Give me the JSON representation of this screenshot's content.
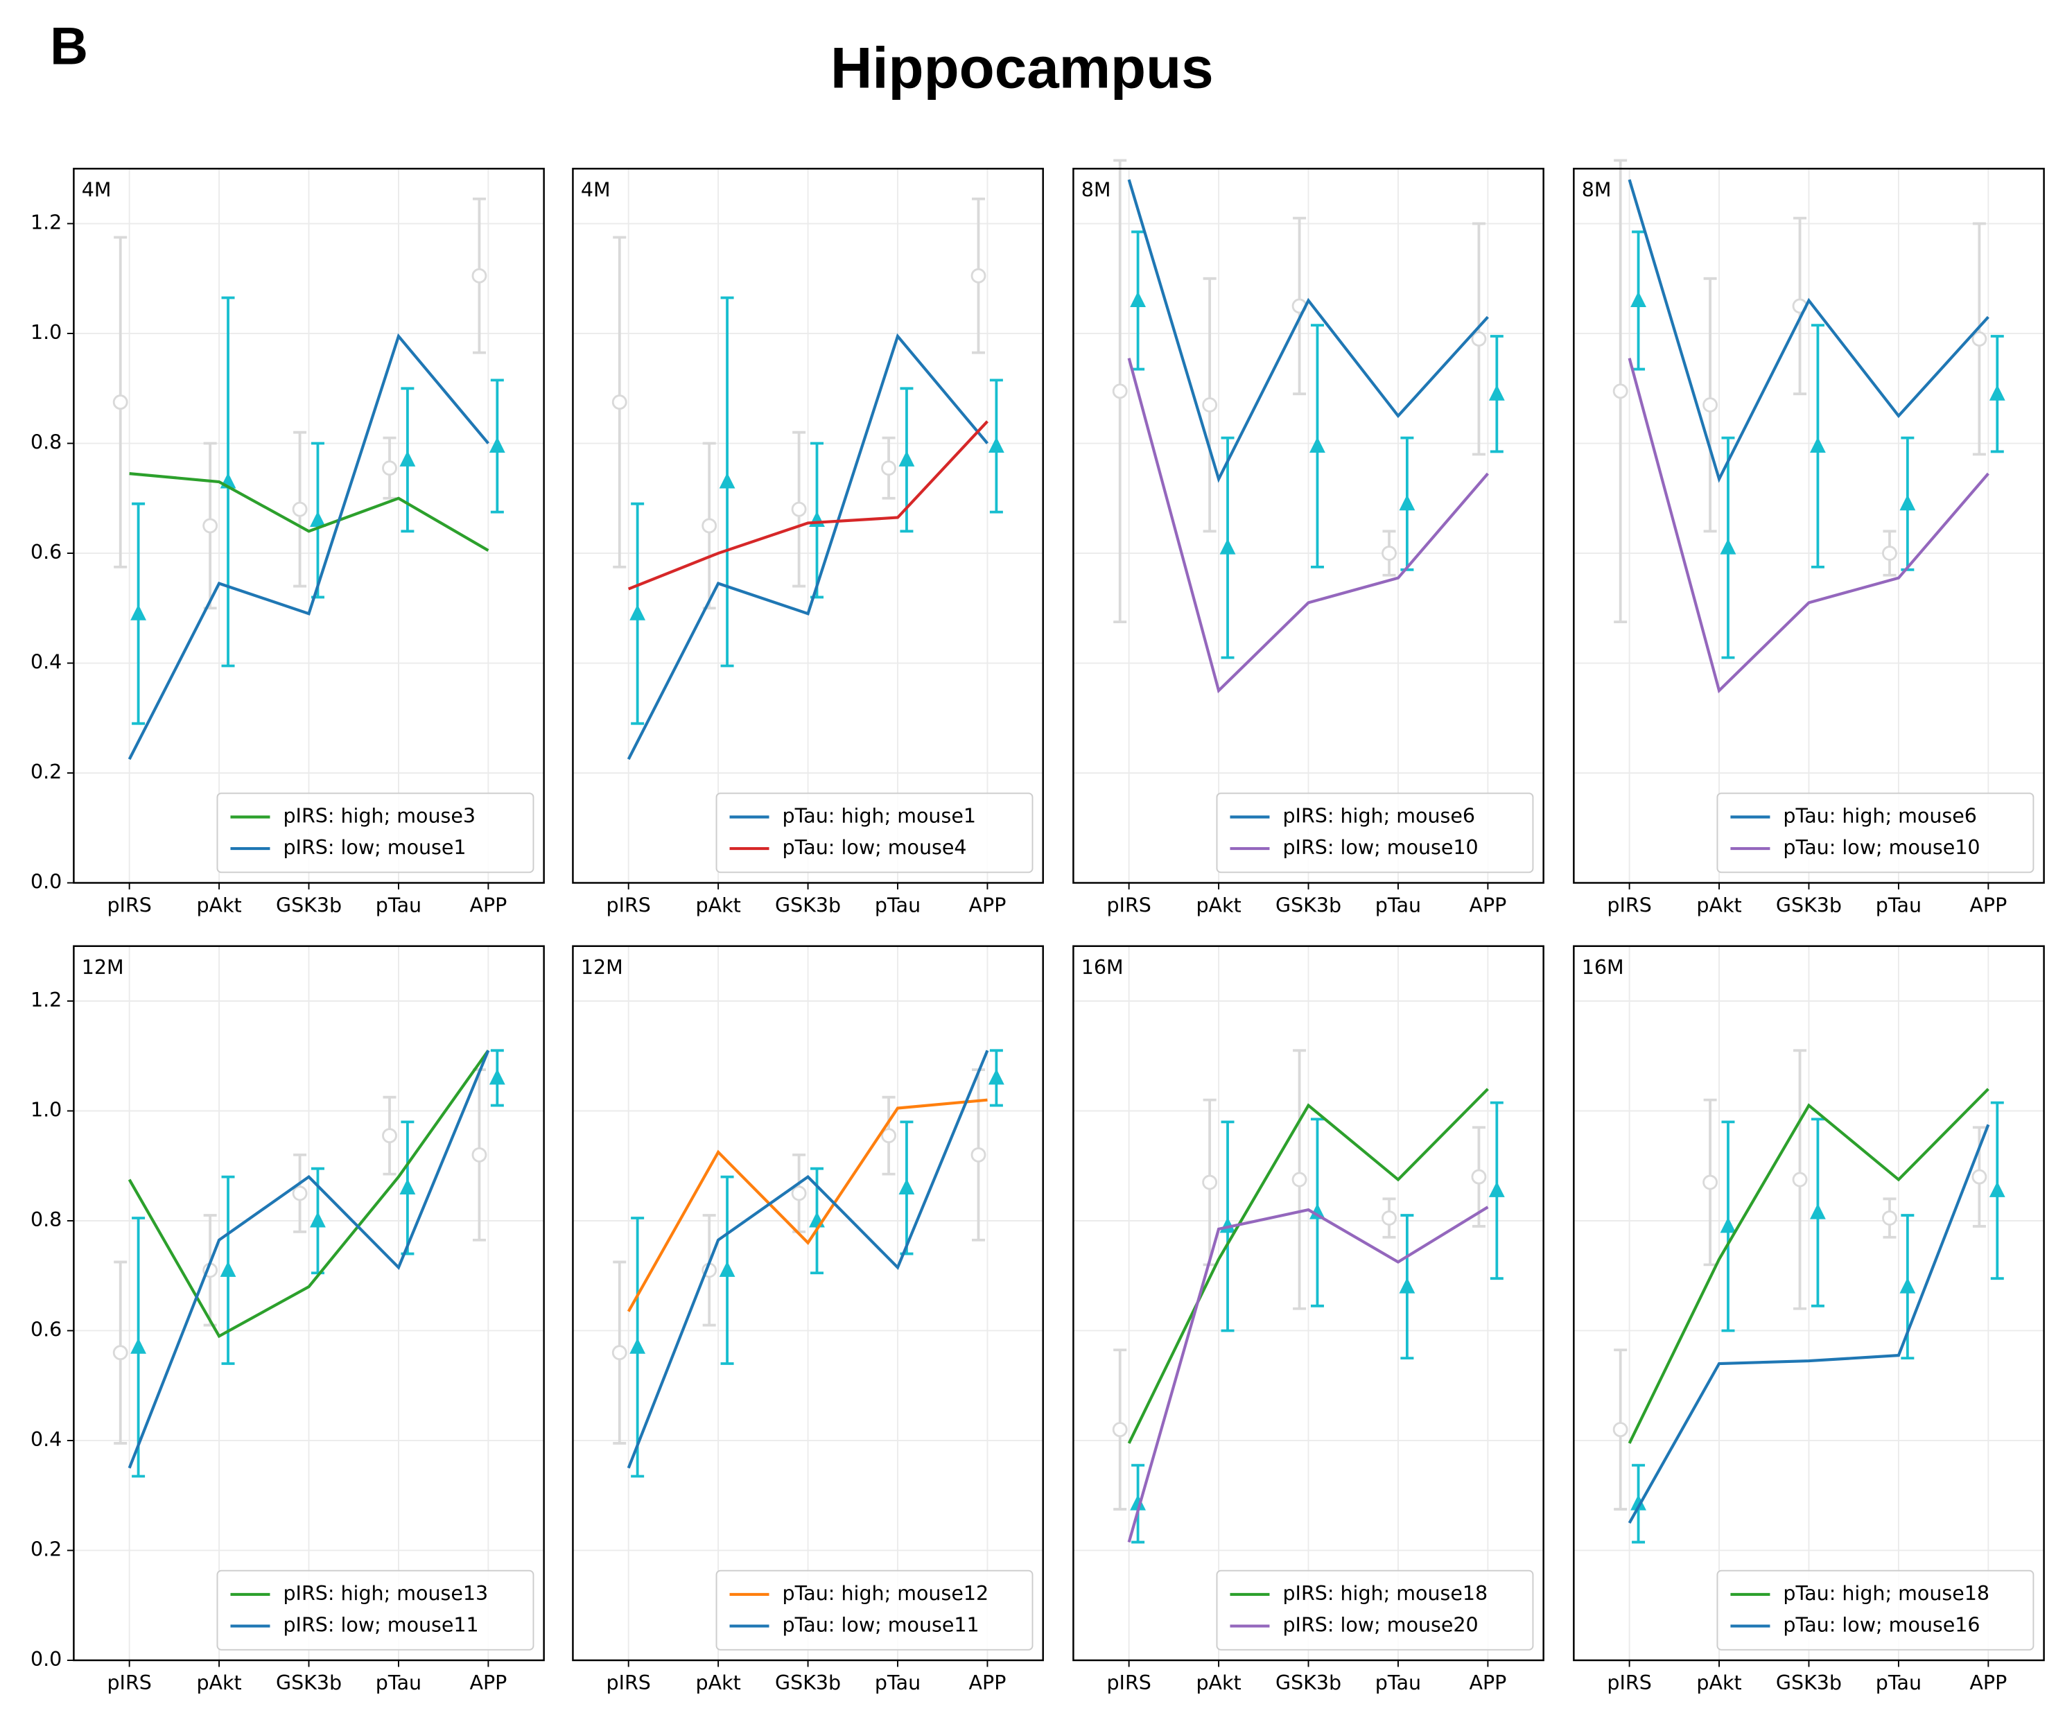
{
  "label": "B",
  "title": "Hippocampus",
  "chart_data": [
    {
      "type": "line",
      "label": "4M",
      "categories": [
        "pIRS",
        "pAkt",
        "GSK3b",
        "pTau",
        "APP"
      ],
      "ylim": [
        0,
        1.3
      ],
      "yticks": [
        {
          "value": 0,
          "label": "0.0"
        },
        {
          "value": 0.2,
          "label": "0.2"
        },
        {
          "value": 0.4,
          "label": "0.4"
        },
        {
          "value": 0.6,
          "label": "0.6"
        },
        {
          "value": 0.8,
          "label": "0.8"
        },
        {
          "value": 1.0,
          "label": "1.0"
        },
        {
          "value": 1.2,
          "label": "1.2"
        }
      ],
      "grid": true,
      "legend": "lower right",
      "errorbars": [
        {
          "marker": "circle",
          "color": "#d9d9d9",
          "values": [
            0.875,
            0.65,
            0.68,
            0.755,
            1.105
          ],
          "errors": [
            0.3,
            0.15,
            0.14,
            0.055,
            0.14
          ]
        },
        {
          "marker": "triangle",
          "color": "#17becf",
          "values": [
            0.49,
            0.73,
            0.66,
            0.77,
            0.795
          ],
          "errors": [
            0.2,
            0.335,
            0.14,
            0.13,
            0.12
          ]
        }
      ],
      "series": [
        {
          "name": "pIRS: high; mouse3",
          "color": "#2ca02c",
          "values": [
            0.745,
            0.73,
            0.64,
            0.7,
            0.605
          ]
        },
        {
          "name": "pIRS: low; mouse1",
          "color": "#1f77b4",
          "values": [
            0.225,
            0.545,
            0.49,
            0.995,
            0.8
          ]
        }
      ]
    },
    {
      "type": "line",
      "label": "4M",
      "categories": [
        "pIRS",
        "pAkt",
        "GSK3b",
        "pTau",
        "APP"
      ],
      "ylim": [
        0,
        1.3
      ],
      "yticks": [
        0,
        0.2,
        0.4,
        0.6,
        0.8,
        1.0,
        1.2
      ],
      "grid": true,
      "legend": "lower right",
      "errorbars": [
        {
          "marker": "circle",
          "color": "#d9d9d9",
          "values": [
            0.875,
            0.65,
            0.68,
            0.755,
            1.105
          ],
          "errors": [
            0.3,
            0.15,
            0.14,
            0.055,
            0.14
          ]
        },
        {
          "marker": "triangle",
          "color": "#17becf",
          "values": [
            0.49,
            0.73,
            0.66,
            0.77,
            0.795
          ],
          "errors": [
            0.2,
            0.335,
            0.14,
            0.13,
            0.12
          ]
        }
      ],
      "series": [
        {
          "name": "pTau: high; mouse1",
          "color": "#1f77b4",
          "values": [
            0.225,
            0.545,
            0.49,
            0.995,
            0.8
          ]
        },
        {
          "name": "pTau: low; mouse4",
          "color": "#d62728",
          "values": [
            0.535,
            0.6,
            0.655,
            0.665,
            0.84
          ]
        }
      ]
    },
    {
      "type": "line",
      "label": "8M",
      "categories": [
        "pIRS",
        "pAkt",
        "GSK3b",
        "pTau",
        "APP"
      ],
      "ylim": [
        0,
        1.3
      ],
      "yticks": [
        0,
        0.2,
        0.4,
        0.6,
        0.8,
        1.0,
        1.2
      ],
      "grid": true,
      "legend": "lower right",
      "errorbars": [
        {
          "marker": "circle",
          "color": "#d9d9d9",
          "values": [
            0.895,
            0.87,
            1.05,
            0.6,
            0.99
          ],
          "errors": [
            0.42,
            0.23,
            0.16,
            0.04,
            0.21
          ]
        },
        {
          "marker": "triangle",
          "color": "#17becf",
          "values": [
            1.06,
            0.61,
            0.795,
            0.69,
            0.89
          ],
          "errors": [
            0.125,
            0.2,
            0.22,
            0.12,
            0.105
          ]
        }
      ],
      "series": [
        {
          "name": "pIRS: high; mouse6",
          "color": "#1f77b4",
          "values": [
            1.28,
            0.735,
            1.06,
            0.85,
            1.03
          ]
        },
        {
          "name": "pIRS: low; mouse10",
          "color": "#9467bd",
          "values": [
            0.955,
            0.35,
            0.51,
            0.555,
            0.745
          ]
        }
      ]
    },
    {
      "type": "line",
      "label": "8M",
      "categories": [
        "pIRS",
        "pAkt",
        "GSK3b",
        "pTau",
        "APP"
      ],
      "ylim": [
        0,
        1.3
      ],
      "yticks": [
        0,
        0.2,
        0.4,
        0.6,
        0.8,
        1.0,
        1.2
      ],
      "grid": true,
      "legend": "lower right",
      "errorbars": [
        {
          "marker": "circle",
          "color": "#d9d9d9",
          "values": [
            0.895,
            0.87,
            1.05,
            0.6,
            0.99
          ],
          "errors": [
            0.42,
            0.23,
            0.16,
            0.04,
            0.21
          ]
        },
        {
          "marker": "triangle",
          "color": "#17becf",
          "values": [
            1.06,
            0.61,
            0.795,
            0.69,
            0.89
          ],
          "errors": [
            0.125,
            0.2,
            0.22,
            0.12,
            0.105
          ]
        }
      ],
      "series": [
        {
          "name": "pTau: high; mouse6",
          "color": "#1f77b4",
          "values": [
            1.28,
            0.735,
            1.06,
            0.85,
            1.03
          ]
        },
        {
          "name": "pTau: low; mouse10",
          "color": "#9467bd",
          "values": [
            0.955,
            0.35,
            0.51,
            0.555,
            0.745
          ]
        }
      ]
    },
    {
      "type": "line",
      "label": "12M",
      "categories": [
        "pIRS",
        "pAkt",
        "GSK3b",
        "pTau",
        "APP"
      ],
      "ylim": [
        0,
        1.3
      ],
      "yticks": [
        {
          "value": 0,
          "label": "0.0"
        },
        {
          "value": 0.2,
          "label": "0.2"
        },
        {
          "value": 0.4,
          "label": "0.4"
        },
        {
          "value": 0.6,
          "label": "0.6"
        },
        {
          "value": 0.8,
          "label": "0.8"
        },
        {
          "value": 1.0,
          "label": "1.0"
        },
        {
          "value": 1.2,
          "label": "1.2"
        }
      ],
      "grid": true,
      "legend": "lower right",
      "errorbars": [
        {
          "marker": "circle",
          "color": "#d9d9d9",
          "values": [
            0.56,
            0.71,
            0.85,
            0.955,
            0.92
          ],
          "errors": [
            0.165,
            0.1,
            0.07,
            0.07,
            0.155
          ]
        },
        {
          "marker": "triangle",
          "color": "#17becf",
          "values": [
            0.57,
            0.71,
            0.8,
            0.86,
            1.06
          ],
          "errors": [
            0.235,
            0.17,
            0.095,
            0.12,
            0.05
          ]
        }
      ],
      "series": [
        {
          "name": "pIRS: high; mouse13",
          "color": "#2ca02c",
          "values": [
            0.875,
            0.59,
            0.68,
            0.88,
            1.11
          ]
        },
        {
          "name": "pIRS: low; mouse11",
          "color": "#1f77b4",
          "values": [
            0.35,
            0.765,
            0.88,
            0.715,
            1.11
          ]
        }
      ]
    },
    {
      "type": "line",
      "label": "12M",
      "categories": [
        "pIRS",
        "pAkt",
        "GSK3b",
        "pTau",
        "APP"
      ],
      "ylim": [
        0,
        1.3
      ],
      "yticks": [
        0,
        0.2,
        0.4,
        0.6,
        0.8,
        1.0,
        1.2
      ],
      "grid": true,
      "legend": "lower right",
      "errorbars": [
        {
          "marker": "circle",
          "color": "#d9d9d9",
          "values": [
            0.56,
            0.71,
            0.85,
            0.955,
            0.92
          ],
          "errors": [
            0.165,
            0.1,
            0.07,
            0.07,
            0.155
          ]
        },
        {
          "marker": "triangle",
          "color": "#17becf",
          "values": [
            0.57,
            0.71,
            0.8,
            0.86,
            1.06
          ],
          "errors": [
            0.235,
            0.17,
            0.095,
            0.12,
            0.05
          ]
        }
      ],
      "series": [
        {
          "name": "pTau: high; mouse12",
          "color": "#ff7f0e",
          "values": [
            0.635,
            0.925,
            0.76,
            1.005,
            1.02
          ]
        },
        {
          "name": "pTau: low; mouse11",
          "color": "#1f77b4",
          "values": [
            0.35,
            0.765,
            0.88,
            0.715,
            1.11
          ]
        }
      ]
    },
    {
      "type": "line",
      "label": "16M",
      "categories": [
        "pIRS",
        "pAkt",
        "GSK3b",
        "pTau",
        "APP"
      ],
      "ylim": [
        0,
        1.3
      ],
      "yticks": [
        0,
        0.2,
        0.4,
        0.6,
        0.8,
        1.0,
        1.2
      ],
      "grid": true,
      "legend": "lower right",
      "errorbars": [
        {
          "marker": "circle",
          "color": "#d9d9d9",
          "values": [
            0.42,
            0.87,
            0.875,
            0.805,
            0.88
          ],
          "errors": [
            0.145,
            0.15,
            0.235,
            0.035,
            0.09
          ]
        },
        {
          "marker": "triangle",
          "color": "#17becf",
          "values": [
            0.285,
            0.79,
            0.815,
            0.68,
            0.855
          ],
          "errors": [
            0.07,
            0.19,
            0.17,
            0.13,
            0.16
          ]
        }
      ],
      "series": [
        {
          "name": "pIRS: high; mouse18",
          "color": "#2ca02c",
          "values": [
            0.395,
            0.73,
            1.01,
            0.875,
            1.04
          ]
        },
        {
          "name": "pIRS: low; mouse20",
          "color": "#9467bd",
          "values": [
            0.215,
            0.785,
            0.82,
            0.725,
            0.825
          ]
        }
      ]
    },
    {
      "type": "line",
      "label": "16M",
      "categories": [
        "pIRS",
        "pAkt",
        "GSK3b",
        "pTau",
        "APP"
      ],
      "ylim": [
        0,
        1.3
      ],
      "yticks": [
        0,
        0.2,
        0.4,
        0.6,
        0.8,
        1.0,
        1.2
      ],
      "grid": true,
      "legend": "lower right",
      "errorbars": [
        {
          "marker": "circle",
          "color": "#d9d9d9",
          "values": [
            0.42,
            0.87,
            0.875,
            0.805,
            0.88
          ],
          "errors": [
            0.145,
            0.15,
            0.235,
            0.035,
            0.09
          ]
        },
        {
          "marker": "triangle",
          "color": "#17becf",
          "values": [
            0.285,
            0.79,
            0.815,
            0.68,
            0.855
          ],
          "errors": [
            0.07,
            0.19,
            0.17,
            0.13,
            0.16
          ]
        }
      ],
      "series": [
        {
          "name": "pTau: high; mouse18",
          "color": "#2ca02c",
          "values": [
            0.395,
            0.73,
            1.01,
            0.875,
            1.04
          ]
        },
        {
          "name": "pTau: low; mouse16",
          "color": "#1f77b4",
          "values": [
            0.25,
            0.54,
            0.545,
            0.555,
            0.975
          ]
        }
      ]
    }
  ]
}
